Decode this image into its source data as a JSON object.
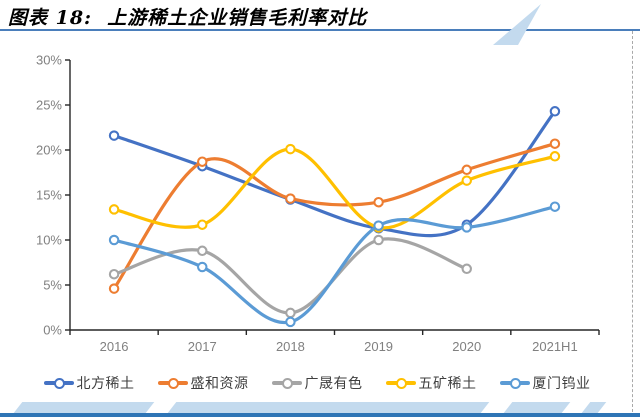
{
  "page": {
    "title": "图表 18:  上游稀土企业销售毛利率对比",
    "accent_rule_color": "#4a7ebb",
    "footer_bar_color": "#2e75b6",
    "deco_color": "#c3daee"
  },
  "chart_data": {
    "type": "line",
    "title": "上游稀土企业销售毛利率对比",
    "categories": [
      "2016",
      "2017",
      "2018",
      "2019",
      "2020",
      "2021H1"
    ],
    "series": [
      {
        "name": "北方稀土",
        "color": "#4472c4",
        "values": [
          21.6,
          18.2,
          14.5,
          11.3,
          11.7,
          24.3
        ]
      },
      {
        "name": "盛和资源",
        "color": "#ed7d31",
        "values": [
          4.6,
          18.7,
          14.6,
          14.2,
          17.8,
          20.7
        ]
      },
      {
        "name": "广晟有色",
        "color": "#a5a5a5",
        "values": [
          6.2,
          8.8,
          1.9,
          10.0,
          6.8,
          null
        ]
      },
      {
        "name": "五矿稀土",
        "color": "#ffc000",
        "values": [
          13.4,
          11.7,
          20.1,
          11.4,
          16.6,
          19.3
        ]
      },
      {
        "name": "厦门钨业",
        "color": "#5b9bd5",
        "values": [
          10.0,
          7.0,
          0.9,
          11.6,
          11.4,
          13.7
        ]
      }
    ],
    "ylim": [
      0,
      30
    ],
    "ytick_step": 5,
    "ytick_suffix": "%",
    "yticks": [
      "0%",
      "5%",
      "10%",
      "15%",
      "20%",
      "25%",
      "30%"
    ],
    "grid": false,
    "smooth": true,
    "legend_position": "bottom",
    "axis_color": "#262626",
    "tick_label_color": "#808080"
  }
}
